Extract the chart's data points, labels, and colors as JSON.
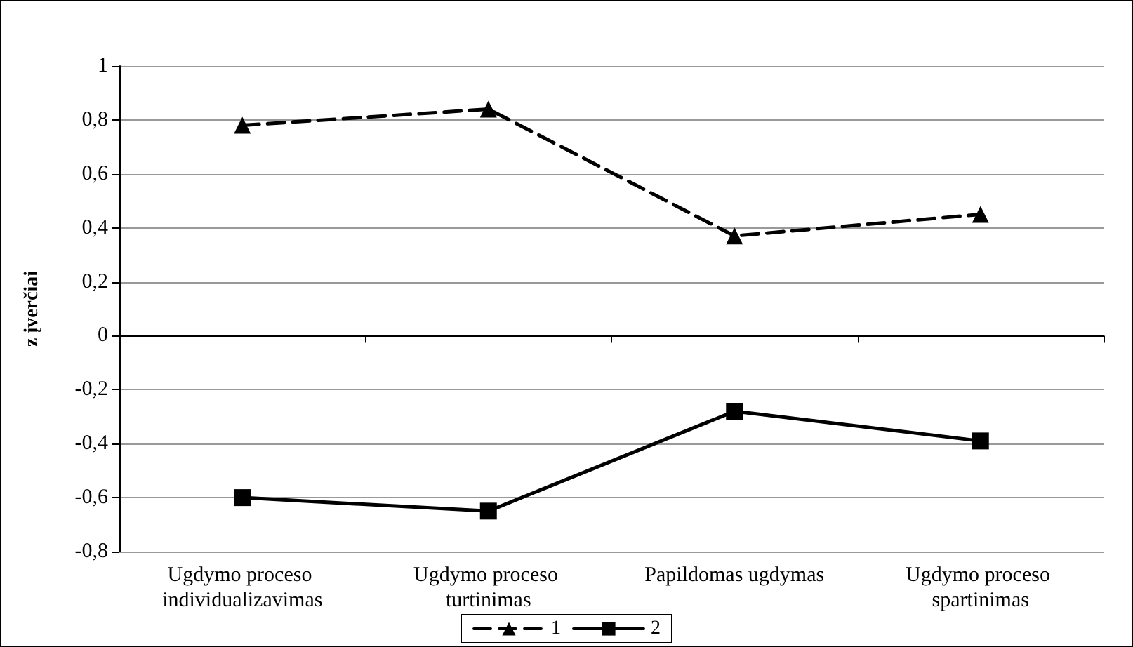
{
  "chart_data": {
    "type": "line",
    "ylabel": "z įverčiai",
    "categories": [
      "Ugdymo proceso individualizavimas",
      "Ugdymo proceso turtinimas",
      "Papildomas ugdymas",
      "Ugdymo proceso spartinimas"
    ],
    "series": [
      {
        "name": "1",
        "color": "#000000",
        "values": [
          0.78,
          0.84,
          0.37,
          0.45
        ],
        "marker": "triangle",
        "line_style": "dashed"
      },
      {
        "name": "2",
        "color": "#000000",
        "values": [
          -0.6,
          -0.65,
          -0.28,
          -0.39
        ],
        "marker": "square",
        "line_style": "solid"
      }
    ],
    "ylim": [
      -0.8,
      1
    ],
    "yticks": [
      {
        "value": -0.8,
        "label": "-0,8"
      },
      {
        "value": -0.6,
        "label": "-0,6"
      },
      {
        "value": -0.4,
        "label": "-0,4"
      },
      {
        "value": -0.2,
        "label": "-0,2"
      },
      0,
      {
        "value": 0.2,
        "label": "0,2"
      },
      {
        "value": 0.4,
        "label": "0,4"
      },
      {
        "value": 0.6,
        "label": "0,6"
      },
      {
        "value": 0.8,
        "label": "0,8"
      },
      1
    ],
    "grid": "y",
    "legend": "bottom"
  }
}
